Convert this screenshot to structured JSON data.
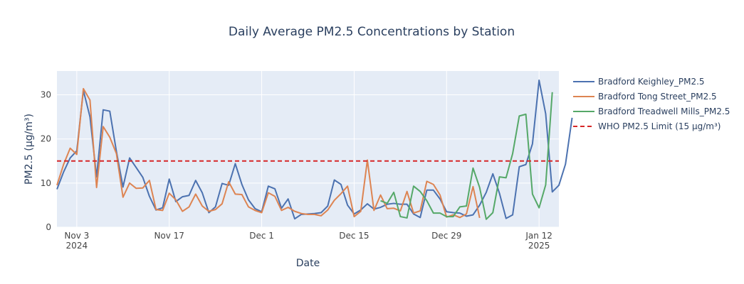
{
  "chart_data": {
    "type": "line",
    "title": "Daily Average PM2.5 Concentrations by Station",
    "xlabel": "Date",
    "ylabel": "PM2.5 (μg/m³)",
    "xlim": [
      "2024-10-31",
      "2025-01-15"
    ],
    "ylim": [
      0,
      35.4
    ],
    "yticks": [
      0,
      10,
      20,
      30
    ],
    "xticks": [
      {
        "date": "2024-11-03",
        "label": "Nov 3",
        "sublabel": "2024"
      },
      {
        "date": "2024-11-17",
        "label": "Nov 17",
        "sublabel": ""
      },
      {
        "date": "2024-12-01",
        "label": "Dec 1",
        "sublabel": ""
      },
      {
        "date": "2024-12-15",
        "label": "Dec 15",
        "sublabel": ""
      },
      {
        "date": "2024-12-29",
        "label": "Dec 29",
        "sublabel": ""
      },
      {
        "date": "2025-01-12",
        "label": "Jan 12",
        "sublabel": "2025"
      }
    ],
    "grid": true,
    "legend_position": "right",
    "series": [
      {
        "name": "Bradford Keighley_PM2.5",
        "color": "#4c72b0",
        "start": "2024-10-31",
        "values": [
          8.6,
          12.5,
          15.7,
          17.3,
          31.0,
          25.0,
          11.4,
          26.6,
          26.3,
          17.2,
          9.1,
          15.7,
          13.5,
          11.3,
          7.0,
          3.9,
          4.4,
          10.9,
          5.8,
          6.9,
          7.2,
          10.6,
          7.8,
          3.3,
          4.6,
          9.9,
          9.5,
          14.4,
          9.7,
          6.2,
          4.2,
          3.5,
          9.3,
          8.7,
          4.3,
          6.4,
          1.9,
          2.9,
          3.0,
          3.1,
          3.3,
          4.8,
          10.7,
          9.7,
          5.0,
          3.0,
          3.9,
          5.3,
          4.1,
          4.5,
          5.2,
          5.4,
          5.2,
          5.2,
          3.0,
          2.2,
          8.4,
          8.4,
          6.4,
          3.5,
          3.3,
          3.2,
          2.5,
          2.8,
          5.0,
          7.9,
          12.1,
          7.7,
          2.0,
          2.8,
          13.7,
          14.2,
          18.9,
          33.3,
          25.7,
          8.0,
          9.5,
          14.3,
          24.8
        ]
      },
      {
        "name": "Bradford Tong Street_PM2.5",
        "color": "#dd8452",
        "start": "2024-10-31",
        "values": [
          9.5,
          14.2,
          17.9,
          16.5,
          31.4,
          28.8,
          9.0,
          22.8,
          20.4,
          16.7,
          6.8,
          10.0,
          8.8,
          8.9,
          10.6,
          4.0,
          3.8,
          7.7,
          6.2,
          3.6,
          4.6,
          7.5,
          4.8,
          3.6,
          4.0,
          5.3,
          10.3,
          7.5,
          7.4,
          4.6,
          3.8,
          3.3,
          7.8,
          7.0,
          3.8,
          4.5,
          3.6,
          3.1,
          2.9,
          2.9,
          2.6,
          3.9,
          6.1,
          7.6,
          9.3,
          2.4,
          3.6,
          15.2,
          3.8,
          7.3,
          4.2,
          4.3,
          3.7,
          8.1,
          3.2,
          3.7,
          10.4,
          9.7,
          7.3,
          2.3,
          2.8,
          2.2,
          3.0,
          9.2,
          2.1
        ]
      },
      {
        "name": "Bradford Treadwell Mills_PM2.5",
        "color": "#55a868",
        "start": "2024-12-19",
        "values": [
          6.0,
          5.4,
          7.9,
          2.4,
          2.1,
          9.3,
          8.1,
          6.0,
          3.2,
          3.2,
          2.4,
          2.4,
          4.6,
          4.8,
          13.4,
          9.0,
          1.8,
          3.3,
          11.4,
          11.2,
          16.7,
          25.2,
          25.6,
          7.5,
          4.4,
          9.6,
          30.6
        ]
      }
    ],
    "reference_line": {
      "name": "WHO PM2.5 Limit (15 μg/m³)",
      "value": 15,
      "color": "#d62728",
      "style": "dashed"
    }
  }
}
